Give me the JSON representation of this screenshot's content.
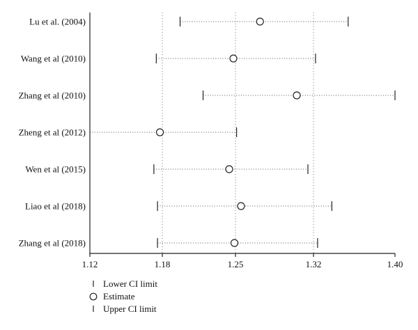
{
  "chart_data": {
    "type": "forest",
    "title": "",
    "xlabel": "",
    "ylabel": "",
    "xlim": [
      1.12,
      1.4
    ],
    "x_ticks": [
      1.12,
      1.18,
      1.25,
      1.32,
      1.4
    ],
    "x_tick_labels": [
      "1.12",
      "1.18",
      "1.25",
      "1.32",
      "1.40"
    ],
    "gridlines_at": [
      1.18,
      1.25,
      1.32
    ],
    "grid": true,
    "studies": [
      {
        "label": "Lu et al. (2004)",
        "lower": 1.197,
        "estimate": 1.272,
        "upper": 1.354
      },
      {
        "label": "Wang et al (2010)",
        "lower": 1.175,
        "estimate": 1.248,
        "upper": 1.322
      },
      {
        "label": "Zhang et al (2010)",
        "lower": 1.219,
        "estimate": 1.305,
        "upper": 1.4
      },
      {
        "label": "Zheng et al (2012)",
        "lower": 1.12,
        "estimate": 1.178,
        "upper": 1.251
      },
      {
        "label": "Wen et al (2015)",
        "lower": 1.173,
        "estimate": 1.244,
        "upper": 1.315
      },
      {
        "label": "Liao et al (2018)",
        "lower": 1.176,
        "estimate": 1.255,
        "upper": 1.338
      },
      {
        "label": "Zhang et al (2018)",
        "lower": 1.176,
        "estimate": 1.249,
        "upper": 1.324
      }
    ],
    "legend": {
      "placement": "bottom-left",
      "entries": [
        {
          "symbol": "cap",
          "label": "Lower CI limit"
        },
        {
          "symbol": "circle",
          "label": "Estimate"
        },
        {
          "symbol": "cap",
          "label": "Upper CI limit"
        }
      ]
    }
  }
}
